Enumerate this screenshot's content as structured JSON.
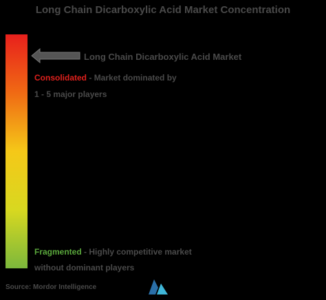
{
  "title": "Long Chain Dicarboxylic Acid Market Concentration",
  "market_label": "Long Chain Dicarboxylic Acid Market",
  "consolidated": {
    "label": "Consolidated",
    "description": "- Market dominated by",
    "detail": "1 - 5 major players"
  },
  "fragmented": {
    "label": "Fragmented",
    "description": "- Highly competitive market",
    "detail": "without dominant players"
  },
  "source": "Source: Mordor Intelligence"
}
